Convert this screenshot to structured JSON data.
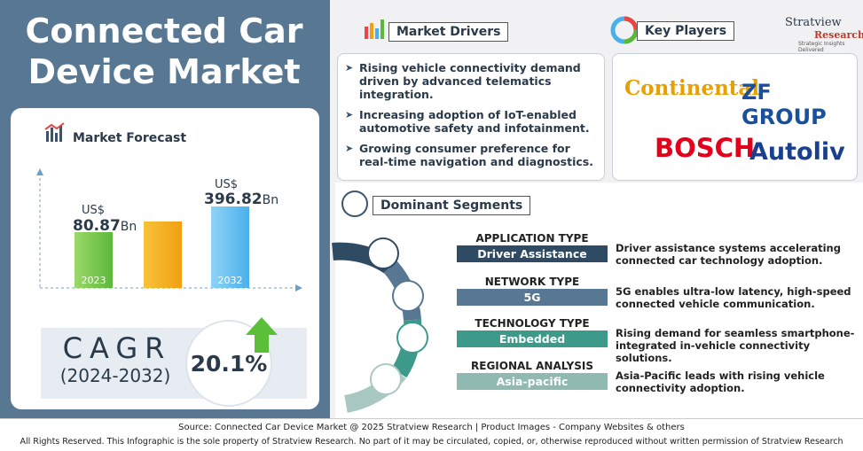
{
  "title": "Connected Car Device Market",
  "forecast": {
    "title": "Market Forecast",
    "currency": "US$",
    "unit": "Bn",
    "points": [
      {
        "year": "2023",
        "value": 80.87
      },
      {
        "year": "2032",
        "value": 396.82
      }
    ]
  },
  "cagr": {
    "label": "CAGR",
    "period": "(2024-2032)",
    "value": "20.1%"
  },
  "drivers": {
    "title": "Market Drivers",
    "items": [
      "Rising vehicle connectivity demand driven by advanced telematics integration.",
      "Increasing adoption of IoT-enabled automotive safety and infotainment.",
      "Growing consumer preference for real-time navigation and diagnostics."
    ]
  },
  "players": {
    "title": "Key Players",
    "logos": [
      "Continental",
      "ZF GROUP",
      "BOSCH",
      "Autoliv"
    ]
  },
  "brand": {
    "name": "Stratview",
    "sub": "Research",
    "tagline": "Strategic Insights Delivered"
  },
  "segments": {
    "title": "Dominant Segments",
    "items": [
      {
        "type": "APPLICATION TYPE",
        "value": "Driver Assistance",
        "note": "Driver assistance systems accelerating connected car technology adoption."
      },
      {
        "type": "NETWORK TYPE",
        "value": "5G",
        "note": "5G enables ultra-low latency, high-speed connected vehicle communication."
      },
      {
        "type": "TECHNOLOGY TYPE",
        "value": "Embedded",
        "note": "Rising demand for seamless smartphone-integrated in-vehicle connectivity solutions."
      },
      {
        "type": "REGIONAL ANALYSIS",
        "value": "Asia-pacific",
        "note": "Asia-Pacific leads with rising vehicle connectivity adoption."
      }
    ]
  },
  "footer": {
    "source": "Source: Connected Car Device Market @ 2025 Stratview Research | Product Images - Company Websites & others",
    "rights": "All Rights Reserved. This Infographic is the sole property of Stratview Research. No part of it may be circulated, copied, or, otherwise reproduced without written permission of Stratview Research"
  }
}
